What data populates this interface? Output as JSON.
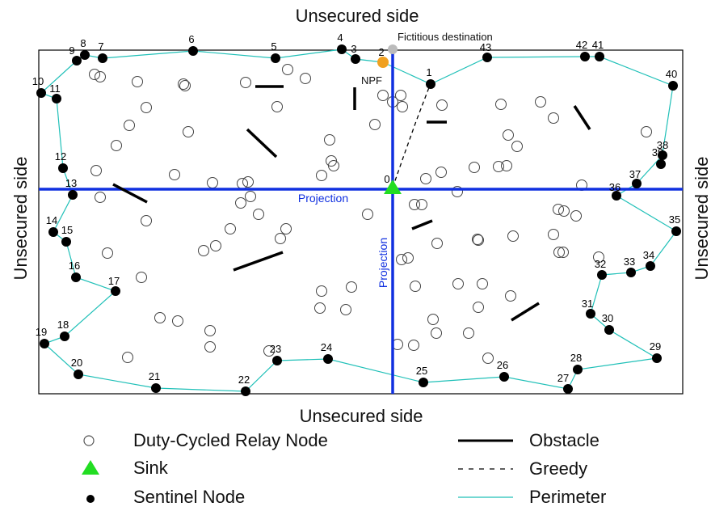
{
  "labels": {
    "top_side": "Unsecured side",
    "bottom_side": "Unsecured side",
    "left_side": "Unsecured side",
    "right_side": "Unsecured side",
    "fictitious": "Fictitious destination",
    "npf": "NPF",
    "projection_h": "Projection",
    "projection_v": "Projection",
    "sink_id": "0"
  },
  "legend": {
    "relay": "Duty-Cycled Relay Node",
    "sink": "Sink",
    "sentinel": "Sentinel Node",
    "obstacle": "Obstacle",
    "greedy": "Greedy",
    "perimeter": "Perimeter"
  },
  "colors": {
    "projection": "#1030e0",
    "perimeter": "#20c0b8",
    "sink": "#22dd22",
    "npf": "#f0a020",
    "fictitious": "#bbbbbb",
    "sentinel": "#000000",
    "obstacle": "#000000"
  },
  "sentinel_ids": [
    "1",
    "2",
    "3",
    "4",
    "5",
    "6",
    "7",
    "8",
    "9",
    "10",
    "11",
    "12",
    "13",
    "14",
    "15",
    "16",
    "17",
    "18",
    "19",
    "20",
    "21",
    "22",
    "23",
    "24",
    "25",
    "26",
    "27",
    "28",
    "29",
    "30",
    "31",
    "32",
    "33",
    "34",
    "35",
    "36",
    "37",
    "38",
    "39",
    "40",
    "41",
    "42",
    "43"
  ]
}
